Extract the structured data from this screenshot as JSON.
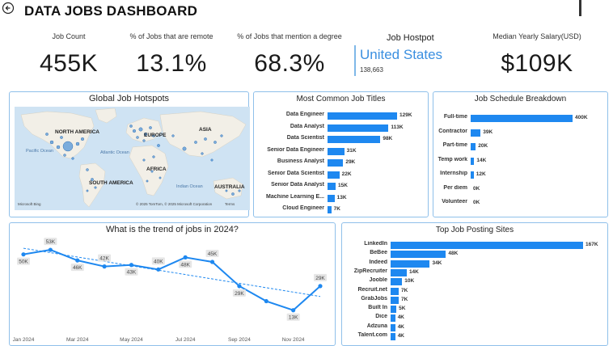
{
  "header": {
    "title": "DATA JOBS DASHBOARD",
    "back_icon": "back-arrow-icon"
  },
  "kpis": {
    "job_count": {
      "label": "Job Count",
      "value": "455K"
    },
    "remote": {
      "label": "% of Jobs that are remote",
      "value": "13.1%"
    },
    "degree": {
      "label": "% of Jobs that mention a degree",
      "value": "68.3%"
    },
    "hotspot": {
      "label": "Job Hostpot",
      "value": "United States",
      "count": "138,663"
    },
    "salary": {
      "label": "Median Yearly Salary(USD)",
      "value": "$109K"
    }
  },
  "map": {
    "title": "Global Job Hotspots",
    "continents": [
      "NORTH AMERICA",
      "EUROPE",
      "ASIA",
      "AFRICA",
      "SOUTH AMERICA",
      "AUSTRALIA"
    ],
    "oceans": [
      "Pacific Ocean",
      "Atlantic Ocean",
      "Indian Ocean"
    ],
    "credit_left": "Microsoft Bing",
    "credit_right": "© 2025 TomTom, © 2025 Microsoft Corporation",
    "terms": "Terms"
  },
  "job_titles": {
    "title": "Most Common Job Titles",
    "colors": {
      "bar": "#1e88f0"
    },
    "chart_data": {
      "type": "bar",
      "orientation": "horizontal",
      "categories": [
        "Data Engineer",
        "Data Analyst",
        "Data Scientist",
        "Senior Data Engineer",
        "Business Analyst",
        "Senior Data Scientist",
        "Senior Data Analyst",
        "Machine Learning E...",
        "Cloud Engineer"
      ],
      "values": [
        129,
        113,
        98,
        31,
        29,
        22,
        15,
        13,
        7
      ],
      "labels": [
        "129K",
        "113K",
        "98K",
        "31K",
        "29K",
        "22K",
        "15K",
        "13K",
        "7K"
      ]
    }
  },
  "schedule": {
    "title": "Job Schedule Breakdown",
    "chart_data": {
      "type": "bar",
      "orientation": "horizontal",
      "categories": [
        "Full-time",
        "Contractor",
        "Part-time",
        "Temp work",
        "Internship",
        "Per diem",
        "Volunteer"
      ],
      "values": [
        400,
        39,
        20,
        14,
        12,
        0,
        0
      ],
      "labels": [
        "400K",
        "39K",
        "20K",
        "14K",
        "12K",
        "0K",
        "0K"
      ]
    }
  },
  "trend": {
    "title": "What is the trend of jobs in 2024?",
    "colors": {
      "line": "#1e88f0"
    },
    "chart_data": {
      "type": "line",
      "x": [
        "Jan 2024",
        "Feb 2024",
        "Mar 2024",
        "Apr 2024",
        "May 2024",
        "Jun 2024",
        "Jul 2024",
        "Aug 2024",
        "Sep 2024",
        "Oct 2024",
        "Nov 2024",
        "Dec 2024"
      ],
      "values": [
        50,
        53,
        46,
        42,
        43,
        40,
        48,
        45,
        29,
        19,
        13,
        29
      ],
      "data_labels": [
        "50K",
        "53K",
        "46K",
        "42K",
        "43K",
        "40K",
        "48K",
        "45K",
        "29K",
        "",
        "13K",
        "29K"
      ],
      "tick_labels": [
        "Jan 2024",
        "Mar 2024",
        "May 2024",
        "Jul 2024",
        "Sep 2024",
        "Nov 2024"
      ],
      "trendline": true,
      "ylim": [
        0,
        60
      ]
    }
  },
  "sites": {
    "title": "Top Job Posting Sites",
    "chart_data": {
      "type": "bar",
      "orientation": "horizontal",
      "categories": [
        "LinkedIn",
        "BeBee",
        "Indeed",
        "ZipRecruiter",
        "Jooble",
        "Recruit.net",
        "GrabJobs",
        "Built In",
        "Dice",
        "Adzuna",
        "Talent.com"
      ],
      "values": [
        167,
        48,
        34,
        14,
        10,
        7,
        7,
        5,
        4,
        4,
        4
      ],
      "labels": [
        "167K",
        "48K",
        "34K",
        "14K",
        "10K",
        "7K",
        "7K",
        "5K",
        "4K",
        "4K",
        "4K"
      ]
    }
  }
}
